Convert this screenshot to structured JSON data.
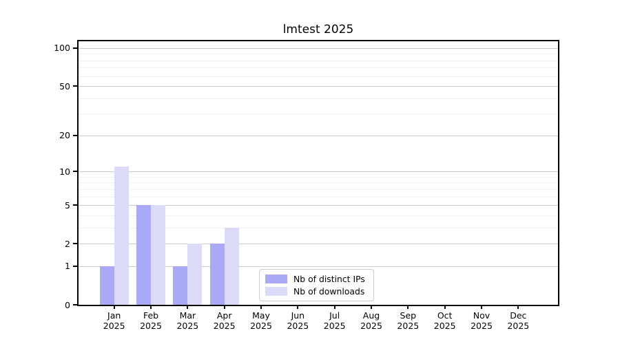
{
  "title": "lmtest 2025",
  "legend": {
    "items": [
      {
        "label": "Nb of distinct IPs",
        "color": "#a9a9f7"
      },
      {
        "label": "Nb of downloads",
        "color": "#dbdbf8"
      }
    ]
  },
  "colors": {
    "bar_distinct_ips": "#a9a9f7",
    "bar_downloads": "#dbdbf8",
    "major_grid": "#c9c9c9",
    "minor_grid": "#f0f0f0",
    "axis": "#000000",
    "legend_border": "#cccccc"
  },
  "chart_data": {
    "type": "bar",
    "title": "lmtest 2025",
    "categories": [
      "Jan",
      "Feb",
      "Mar",
      "Apr",
      "May",
      "Jun",
      "Jul",
      "Aug",
      "Sep",
      "Oct",
      "Nov",
      "Dec"
    ],
    "year_label": "2025",
    "series": [
      {
        "name": "Nb of distinct IPs",
        "color": "#a9a9f7",
        "values": [
          1,
          5,
          1,
          2,
          0,
          0,
          0,
          0,
          0,
          0,
          0,
          0
        ]
      },
      {
        "name": "Nb of downloads",
        "color": "#dbdbf8",
        "values": [
          11,
          5,
          2,
          3,
          0,
          0,
          0,
          0,
          0,
          0,
          0,
          0
        ]
      }
    ],
    "xlabel": "",
    "ylabel": "",
    "yscale": "log1p",
    "ylim": [
      0,
      113
    ],
    "yticks": [
      0,
      1,
      2,
      5,
      10,
      20,
      50,
      100
    ],
    "minor_gridlines": [
      3,
      4,
      6,
      7,
      8,
      9,
      30,
      40,
      60,
      70,
      80,
      90
    ],
    "grid": true,
    "legend_position": "lower center-left inside plot"
  }
}
